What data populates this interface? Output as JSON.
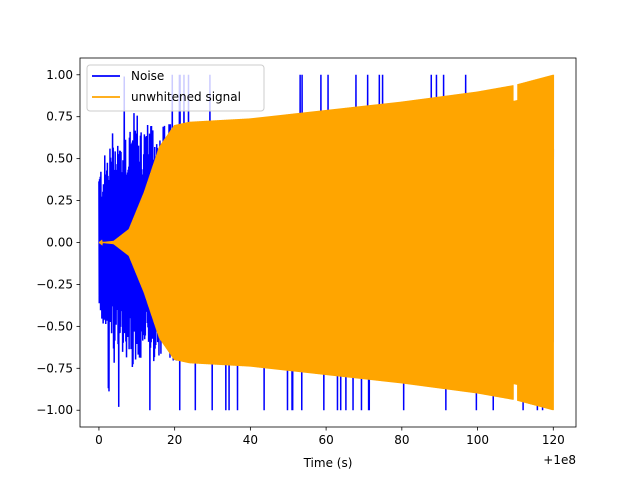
{
  "chart_data": {
    "type": "line",
    "xlabel": "Time (s)",
    "ylabel": "",
    "x_offset_label": "+1e8",
    "xlim": [
      -5,
      126
    ],
    "ylim": [
      -1.1,
      1.1
    ],
    "x_ticks": [
      0,
      20,
      40,
      60,
      80,
      100,
      120
    ],
    "x_tick_labels": [
      "0",
      "20",
      "40",
      "60",
      "80",
      "100",
      "120"
    ],
    "y_ticks": [
      -1.0,
      -0.75,
      -0.5,
      -0.25,
      0.0,
      0.25,
      0.5,
      0.75,
      1.0
    ],
    "y_tick_labels": [
      "−1.00",
      "−0.75",
      "−0.50",
      "−0.25",
      "0.00",
      "0.25",
      "0.50",
      "0.75",
      "1.00"
    ],
    "grid": false,
    "legend_position": "upper-left",
    "series": [
      {
        "name": "Noise",
        "color": "#0000ff",
        "x_range": [
          0,
          120
        ],
        "envelope": {
          "x": [
            0,
            2,
            4,
            6,
            8,
            10,
            12,
            14,
            16,
            18,
            20
          ],
          "amplitude": [
            0.45,
            0.55,
            0.72,
            0.65,
            0.75,
            0.8,
            0.72,
            0.7,
            0.74,
            0.72,
            0.72
          ]
        }
      },
      {
        "name": "unwhitened signal",
        "color": "#ffa500",
        "x_range": [
          0,
          120
        ],
        "envelope": {
          "x": [
            0,
            4,
            8,
            12,
            16,
            20,
            24,
            40,
            60,
            80,
            100,
            110,
            115,
            120
          ],
          "amplitude": [
            0.0,
            0.01,
            0.08,
            0.3,
            0.57,
            0.7,
            0.72,
            0.74,
            0.79,
            0.84,
            0.9,
            0.94,
            0.97,
            1.0
          ]
        }
      }
    ]
  }
}
